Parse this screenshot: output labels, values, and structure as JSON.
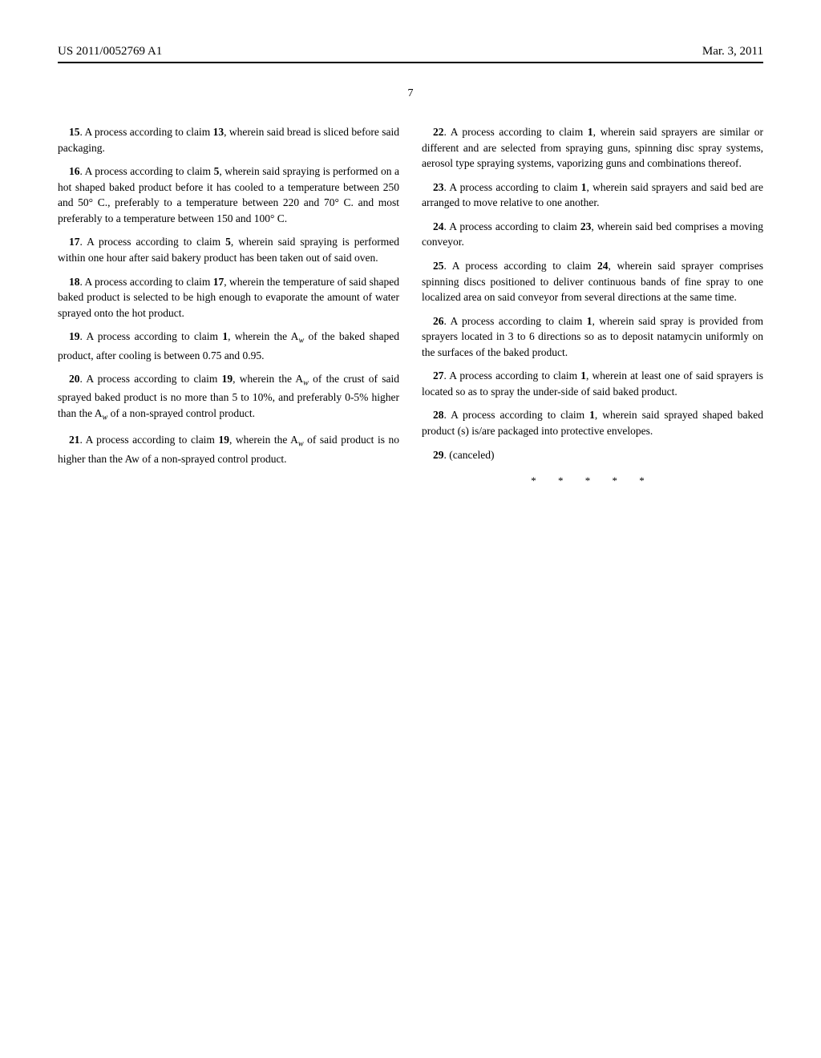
{
  "header": {
    "pub_number": "US 2011/0052769 A1",
    "date": "Mar. 3, 2011"
  },
  "page_number": "7",
  "left_column": [
    {
      "num": "15",
      "text_before": ". A process according to claim ",
      "ref": "13",
      "text_after": ", wherein said bread is sliced before said packaging."
    },
    {
      "num": "16",
      "text_before": ". A process according to claim ",
      "ref": "5",
      "text_after": ", wherein said spraying is performed on a hot shaped baked product before it has cooled to a temperature between 250 and 50° C., preferably to a temperature between 220 and 70° C. and most preferably to a temperature between 150 and 100° C."
    },
    {
      "num": "17",
      "text_before": ". A process according to claim ",
      "ref": "5",
      "text_after": ", wherein said spraying is performed within one hour after said bakery product has been taken out of said oven."
    },
    {
      "num": "18",
      "text_before": ". A process according to claim ",
      "ref": "17",
      "text_after": ", wherein the temperature of said shaped baked product is selected to be high enough to evaporate the amount of water sprayed onto the hot product."
    },
    {
      "num": "19",
      "text_before": ". A process according to claim ",
      "ref": "1",
      "text_after": ", wherein the A",
      "sub": "w",
      "text_cont": " of the baked shaped product, after cooling is between 0.75 and 0.95."
    },
    {
      "num": "20",
      "text_before": ". A process according to claim ",
      "ref": "19",
      "text_after": ", wherein the A",
      "sub": "w",
      "text_cont": " of the crust of said sprayed baked product is no more than 5 to 10%, and preferably 0-5% higher than the A",
      "sub2": "w",
      "text_cont2": " of a non-sprayed control product."
    },
    {
      "num": "21",
      "text_before": ". A process according to claim ",
      "ref": "19",
      "text_after": ", wherein the A",
      "sub": "w",
      "text_cont": " of said product is no higher than the Aw of a non-sprayed control product."
    }
  ],
  "right_column": [
    {
      "num": "22",
      "text_before": ". A process according to claim ",
      "ref": "1",
      "text_after": ", wherein said sprayers are similar or different and are selected from spraying guns, spinning disc spray systems, aerosol type spraying systems, vaporizing guns and combinations thereof."
    },
    {
      "num": "23",
      "text_before": ". A process according to claim ",
      "ref": "1",
      "text_after": ", wherein said sprayers and said bed are arranged to move relative to one another."
    },
    {
      "num": "24",
      "text_before": ". A process according to claim ",
      "ref": "23",
      "text_after": ", wherein said bed comprises a moving conveyor."
    },
    {
      "num": "25",
      "text_before": ". A process according to claim ",
      "ref": "24",
      "text_after": ", wherein said sprayer comprises spinning discs positioned to deliver continuous bands of fine spray to one localized area on said conveyor from several directions at the same time."
    },
    {
      "num": "26",
      "text_before": ". A process according to claim ",
      "ref": "1",
      "text_after": ", wherein said spray is provided from sprayers located in 3 to 6 directions so as to deposit natamycin uniformly on the surfaces of the baked product."
    },
    {
      "num": "27",
      "text_before": ". A process according to claim ",
      "ref": "1",
      "text_after": ", wherein at least one of said sprayers is located so as to spray the under-side of said baked product."
    },
    {
      "num": "28",
      "text_before": ". A process according to claim ",
      "ref": "1",
      "text_after": ", wherein said sprayed shaped baked product (s) is/are packaged into protective envelopes."
    },
    {
      "num": "29",
      "text_after": ". (canceled)"
    }
  ],
  "end_marks": "* * * * *"
}
